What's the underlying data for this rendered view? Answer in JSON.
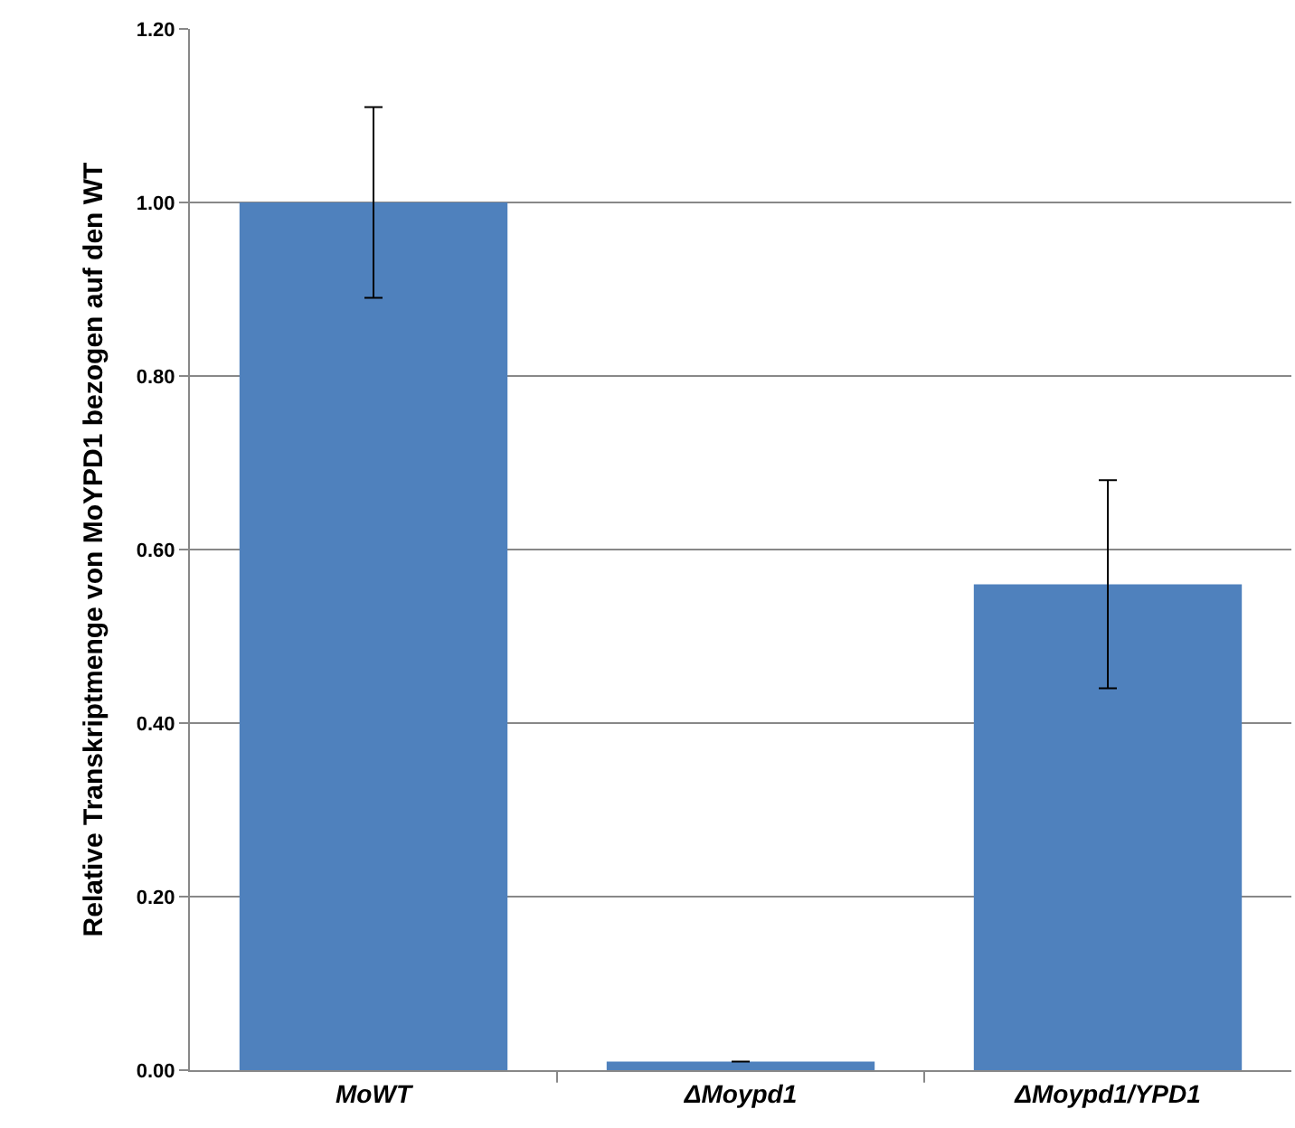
{
  "chart_data": {
    "type": "bar",
    "ylabel": "Relative Transkriptmenge von MoYPD1 bezogen auf den WT",
    "categories": [
      "MoWT",
      "ΔMoypd1",
      "ΔMoypd1/YPD1"
    ],
    "values": [
      1.0,
      0.01,
      0.56
    ],
    "errors": [
      0.11,
      null,
      0.12
    ],
    "color": "#4f81bd",
    "ylim": [
      0,
      1.2
    ],
    "yticks": [
      {
        "value": 0,
        "label": "0.00"
      },
      {
        "value": 0.2,
        "label": "0.20"
      },
      {
        "value": 0.4,
        "label": "0.40"
      },
      {
        "value": 0.6,
        "label": "0.60"
      },
      {
        "value": 0.8,
        "label": "0.80"
      },
      {
        "value": 1,
        "label": "1.00"
      },
      {
        "value": 1.2,
        "label": "1.20"
      }
    ],
    "grid": "y",
    "legend": false
  }
}
